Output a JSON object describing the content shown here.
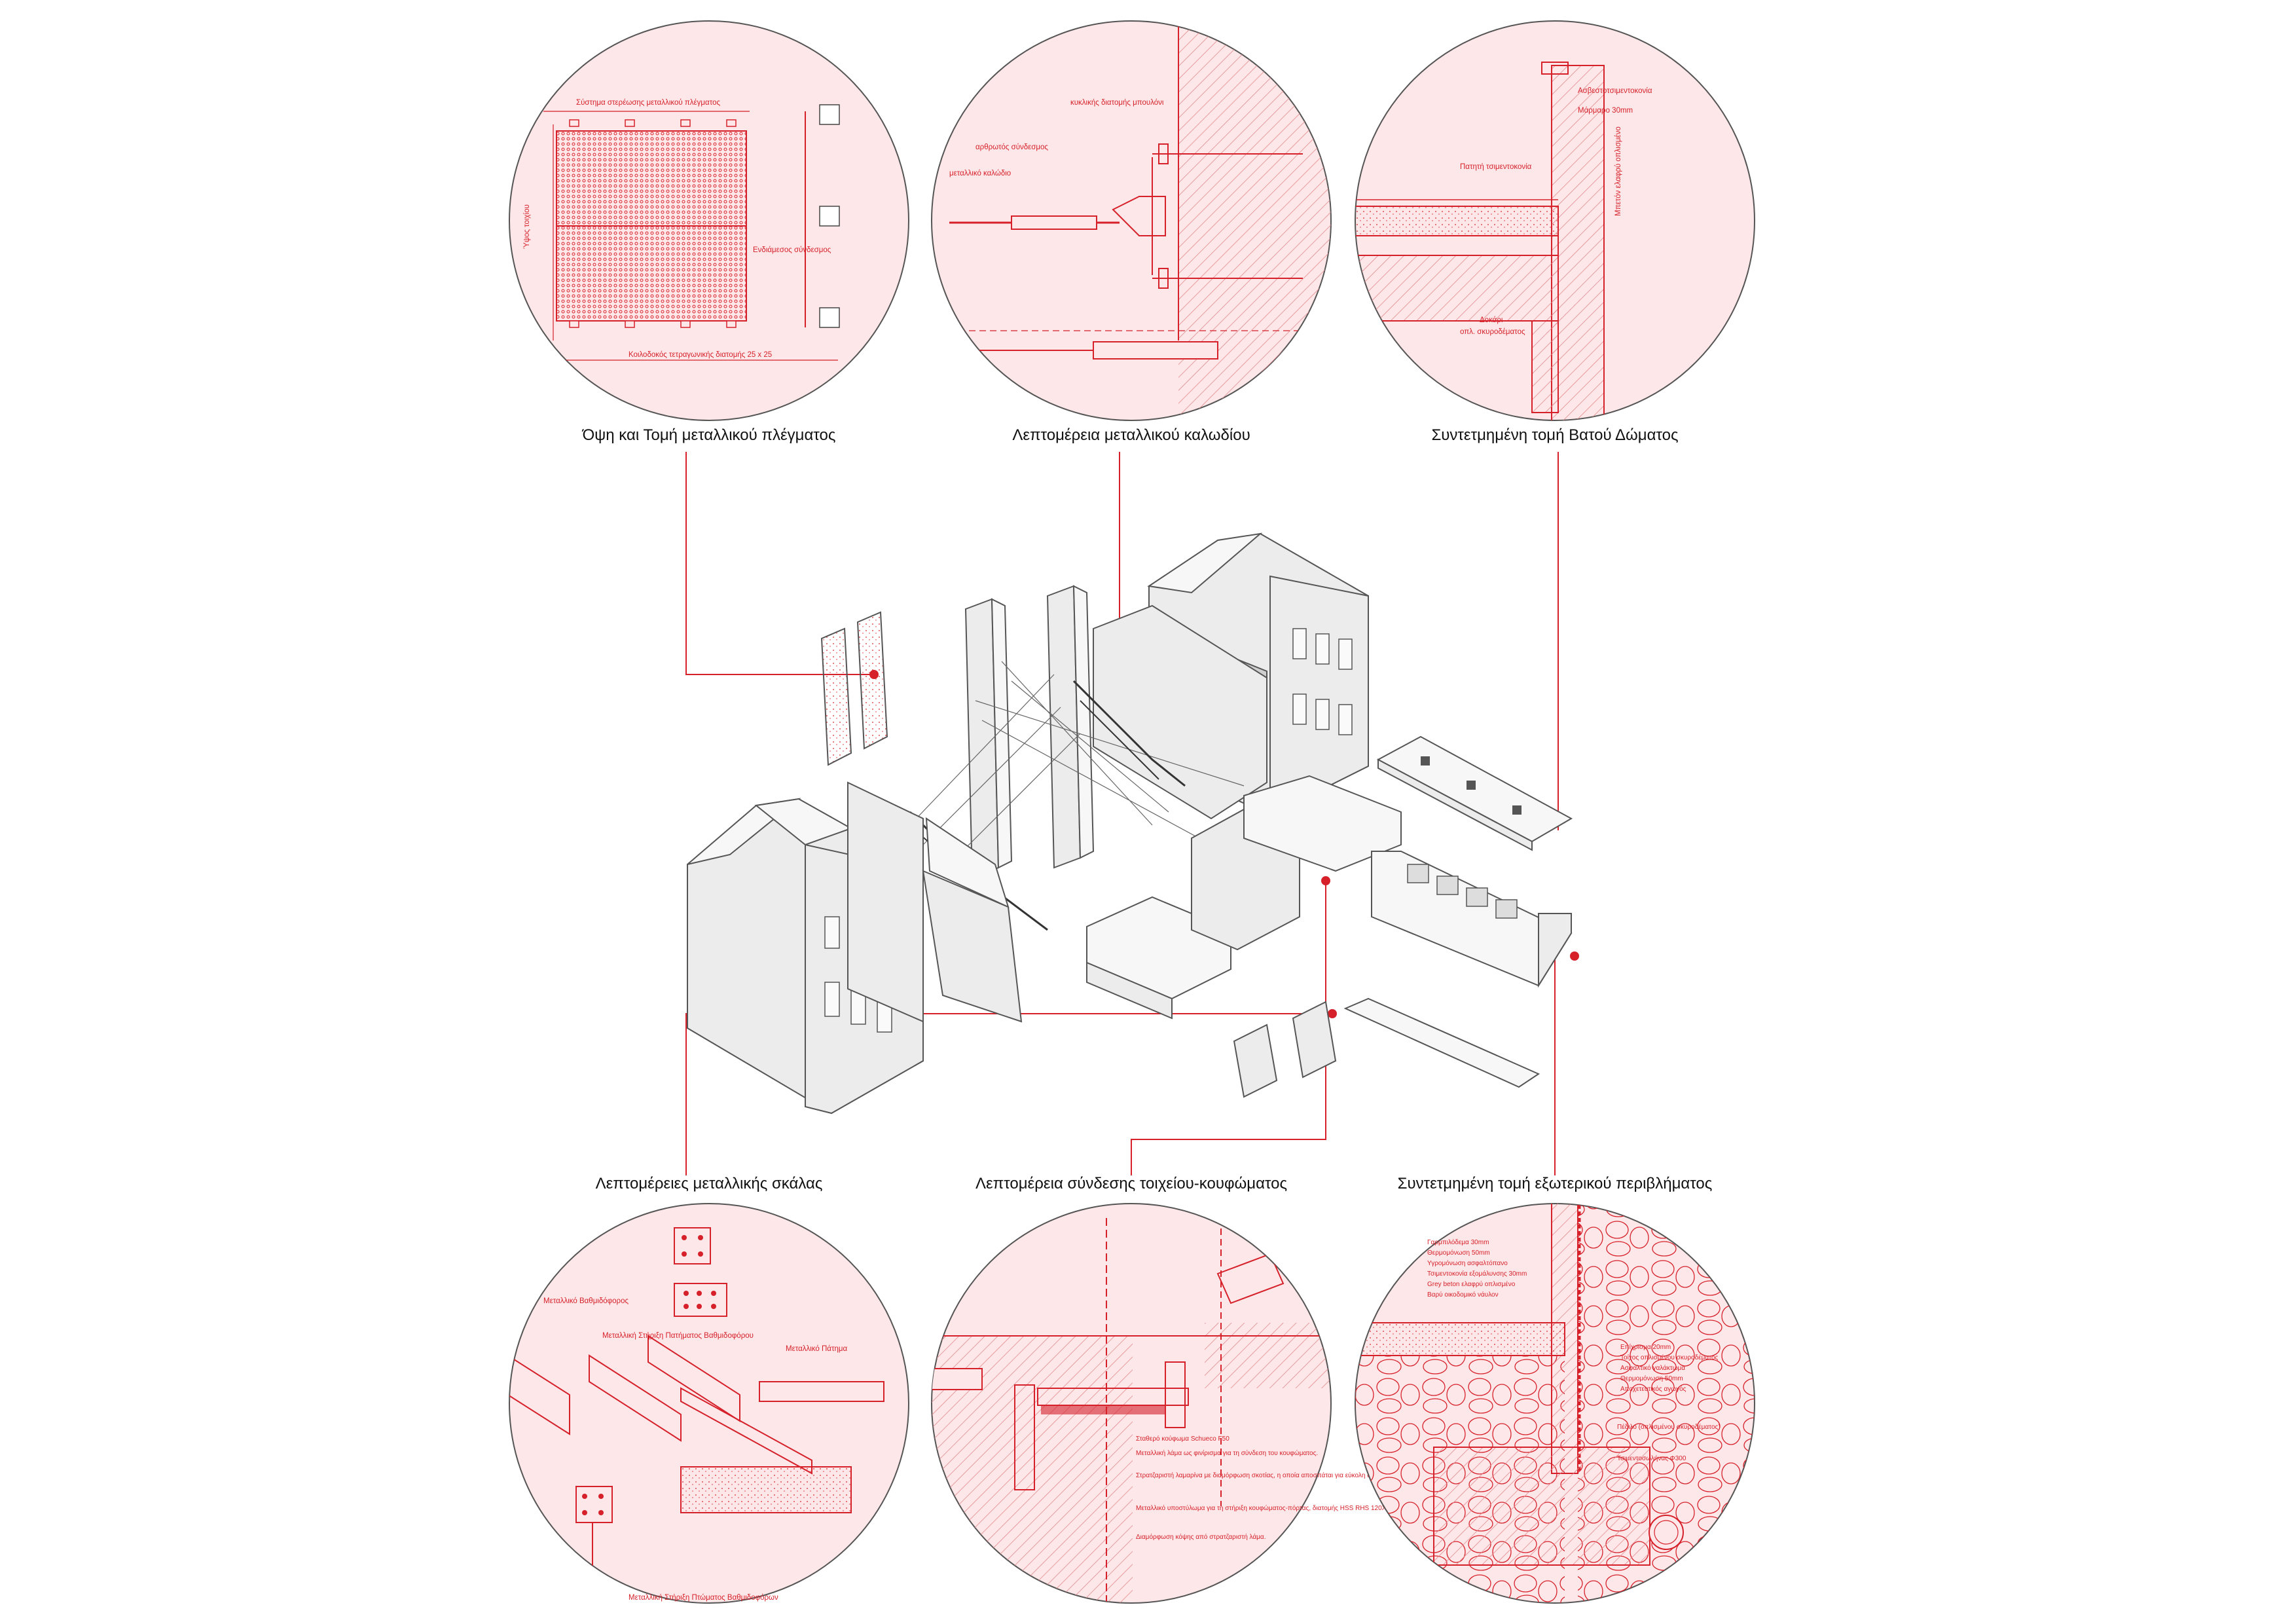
{
  "captions": {
    "top_left": "Όψη και Τομή μεταλλικού πλέγματος",
    "top_center": "Λεπτομέρεια μεταλλικού καλωδίου",
    "top_right": "Συντετμημένη τομή Βατού Δώματος",
    "bottom_left": "Λεπτομέρειες μεταλλικής σκάλας",
    "bottom_center": "Λεπτομέρεια σύνδεσης τοιχείου-κουφώματος",
    "bottom_right": "Συντετμημένη τομή εξωτερικού περιβλήματος"
  },
  "detail_mesh": {
    "top_label": "Σύστημα στερέωσης μεταλλικού πλέγματος",
    "label_connection": "Ενδιάμεσος σύνδεσμος",
    "label_height": "Ύψος τοιχίου",
    "label_bottom": "Κοιλοδοκός τετραγωνικής διατομής 25 x 25"
  },
  "detail_cable": {
    "label_dowel": "κυκλικής διατομής μπουλόνι",
    "label_joint": "αρθρωτός σύνδεσμος",
    "label_cable": "μεταλλικό καλώδιο"
  },
  "detail_roof": {
    "label_1": "Ασβεστοτσιμεντοκονία",
    "label_2": "Μάρμαρο 30mm",
    "label_3": "Πατητή τσιμεντοκονία",
    "label_4": "Μπετόν ελαφρύ οπλισμένο",
    "label_5": "Δοκάρι",
    "label_6": "οπλ. σκυροδέματος"
  },
  "detail_stair": {
    "label_1": "Μεταλλικό Βαθμιδόφορος",
    "label_2": "Μεταλλική Στήριξη Πατήματος Βαθμιδοφόρου",
    "label_3": "Μεταλλικό Πάτημα",
    "label_4": "Μεταλλική Στήριξη Πτώματος Βαθμιδοφόρων"
  },
  "detail_frame": {
    "label_1": "Σταθερό κούφωμα Schueco F50",
    "label_2": "Μεταλλική λάμα ως φινίρισμα για τη σύνδεση του κουφώματος.",
    "label_3": "Στρατζαριστή λαμαρίνα με διαμόρφωση σκοτίας, η οποία αποσπάται για εύκολη αντικατάσταση του κουφώματος.",
    "label_4": "Μεταλλικό υποστύλωμα για τη στήριξη κουφώματος-πόρτας, διατομής HSS RHS 120X80X3.",
    "label_5": "Διαμόρφωση κόψης από στρατζαριστή λάμα."
  },
  "detail_envelope": {
    "label_1": "Γαρμπιλόδεμα 30mm",
    "label_2": "Θερμομόνωση 50mm",
    "label_3": "Υγρομόνωση ασφαλτόπανο",
    "label_4": "Τσιμεντοκονία εξομάλυνσης 30mm",
    "label_5": "Grey beton ελαφρύ οπλισμένο",
    "label_6": "Βαρύ οικοδομικό νάυλον",
    "label_7": "Επίχρισμα 20mm",
    "label_8": "Τοίχος οπλισμένου σκυροδέματος",
    "label_9": "Ασφαλτικό γαλάκτωμα",
    "label_10": "Θερμομόνωση 50mm",
    "label_11": "Αποχετευτικός αγωγός",
    "label_12": "Πέδιλο (οπλισμένου σκυροδέματος)",
    "label_13": "Τσιμεντοσωλήνας Φ300"
  },
  "colors": {
    "accent": "#d6202a",
    "circle_fill": "#fde7e8",
    "building": "#ececec"
  }
}
